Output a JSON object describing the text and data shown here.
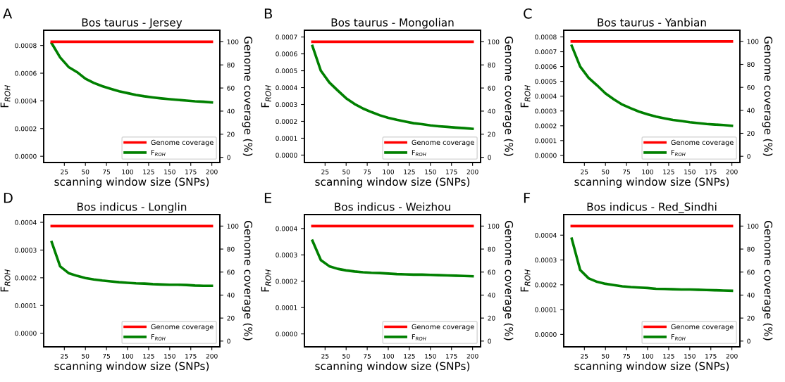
{
  "chart_data": [
    {
      "type": "line",
      "title": "Bos taurus - Jersey",
      "annotations": [
        "A"
      ],
      "xlabel": "scanning window size (SNPs)",
      "ylabel": "F$_{ROH}$",
      "y2label": "Genome coverage (%)",
      "legend": "bottom right",
      "x": [
        10,
        20,
        30,
        40,
        50,
        60,
        70,
        80,
        90,
        100,
        110,
        120,
        130,
        140,
        150,
        160,
        170,
        180,
        190,
        200
      ],
      "series": [
        {
          "name": "Genome coverage",
          "color": "#ff0000",
          "axis": "y2",
          "values": [
            100,
            100,
            100,
            100,
            100,
            100,
            100,
            100,
            100,
            100,
            100,
            100,
            100,
            100,
            100,
            100,
            100,
            100,
            100,
            100
          ]
        },
        {
          "name": "F$_{ROH}$",
          "color": "#008000",
          "values": [
            0.000816,
            0.000714,
            0.000645,
            0.000608,
            0.00056,
            0.00053,
            0.000506,
            0.000487,
            0.000469,
            0.000456,
            0.000443,
            0.000433,
            0.000425,
            0.000418,
            0.000412,
            0.000407,
            0.000402,
            0.000397,
            0.000394,
            0.000389
          ]
        }
      ],
      "xlim": [
        0.5,
        209.5
      ],
      "xticks": [
        25,
        50,
        75,
        100,
        125,
        150,
        175,
        200
      ],
      "ylim": [
        -4.5e-05,
        0.00091
      ],
      "yticks": [
        {
          "value": 0,
          "label": "0.0000"
        },
        {
          "value": 0.0002,
          "label": "0.0002"
        },
        {
          "value": 0.0004,
          "label": "0.0004"
        },
        {
          "value": 0.0006,
          "label": "0.0006"
        },
        {
          "value": 0.0008,
          "label": "0.0008"
        }
      ],
      "y2lim": [
        -4.5,
        110
      ],
      "y2ticks": [
        0,
        20,
        40,
        60,
        80,
        100
      ]
    },
    {
      "type": "line",
      "title": "Bos taurus - Mongolian",
      "annotations": [
        "B"
      ],
      "xlabel": "scanning window size (SNPs)",
      "ylabel": "F$_{ROH}$",
      "y2label": "Genome coverage (%)",
      "legend": "bottom right",
      "x": [
        10,
        20,
        30,
        40,
        50,
        60,
        70,
        80,
        90,
        100,
        110,
        120,
        130,
        140,
        150,
        160,
        170,
        180,
        190,
        200
      ],
      "series": [
        {
          "name": "Genome coverage",
          "color": "#ff0000",
          "axis": "y2",
          "values": [
            100,
            100,
            100,
            100,
            100,
            100,
            100,
            100,
            100,
            100,
            100,
            100,
            100,
            100,
            100,
            100,
            100,
            100,
            100,
            100
          ]
        },
        {
          "name": "F$_{ROH}$",
          "color": "#008000",
          "values": [
            0.000647,
            0.0005,
            0.000431,
            0.000383,
            0.000337,
            0.000303,
            0.000276,
            0.000255,
            0.000236,
            0.000221,
            0.000209,
            0.000199,
            0.000189,
            0.000183,
            0.000176,
            0.000171,
            0.000167,
            0.000163,
            0.00016,
            0.000156
          ]
        }
      ],
      "xlim": [
        0.5,
        209.5
      ],
      "xticks": [
        25,
        50,
        75,
        100,
        125,
        150,
        175,
        200
      ],
      "ylim": [
        -4.4e-05,
        0.00074
      ],
      "yticks": [
        {
          "value": 0,
          "label": "0.0000"
        },
        {
          "value": 0.0001,
          "label": "0.0001"
        },
        {
          "value": 0.0002,
          "label": "0.0002"
        },
        {
          "value": 0.0003,
          "label": "0.0003"
        },
        {
          "value": 0.0004,
          "label": "0.0004"
        },
        {
          "value": 0.0005,
          "label": "0.0005"
        },
        {
          "value": 0.0006,
          "label": "0.0006"
        },
        {
          "value": 0.0007,
          "label": "0.0007"
        }
      ],
      "y2lim": [
        -4.5,
        110
      ],
      "y2ticks": [
        0,
        20,
        40,
        60,
        80,
        100
      ]
    },
    {
      "type": "line",
      "title": "Bos taurus - Yanbian",
      "annotations": [
        "C"
      ],
      "xlabel": "scanning window size (SNPs)",
      "ylabel": "F$_{ROH}$",
      "y2label": "Genome coverage (%)",
      "legend": "bottom right",
      "x": [
        10,
        20,
        30,
        40,
        50,
        60,
        70,
        80,
        90,
        100,
        110,
        120,
        130,
        140,
        150,
        160,
        170,
        180,
        190,
        200
      ],
      "series": [
        {
          "name": "Genome coverage",
          "color": "#ff0000",
          "axis": "y2",
          "values": [
            100,
            100,
            100,
            100,
            100,
            100,
            100,
            100,
            100,
            100,
            100,
            100,
            100,
            100,
            100,
            100,
            100,
            100,
            100,
            100
          ]
        },
        {
          "name": "F$_{ROH}$",
          "color": "#008000",
          "values": [
            0.00074,
            0.0006,
            0.000524,
            0.000473,
            0.000419,
            0.000378,
            0.000343,
            0.000318,
            0.000295,
            0.000277,
            0.000262,
            0.00025,
            0.000239,
            0.000232,
            0.000224,
            0.000218,
            0.000212,
            0.000208,
            0.000205,
            0.0002
          ]
        }
      ],
      "xlim": [
        0.5,
        209.5
      ],
      "xticks": [
        25,
        50,
        75,
        100,
        125,
        150,
        175,
        200
      ],
      "ylim": [
        -4.8e-05,
        0.000845
      ],
      "yticks": [
        {
          "value": 0,
          "label": "0.0000"
        },
        {
          "value": 0.0001,
          "label": "0.0001"
        },
        {
          "value": 0.0002,
          "label": "0.0002"
        },
        {
          "value": 0.0003,
          "label": "0.0003"
        },
        {
          "value": 0.0004,
          "label": "0.0004"
        },
        {
          "value": 0.0005,
          "label": "0.0005"
        },
        {
          "value": 0.0006,
          "label": "0.0006"
        },
        {
          "value": 0.0007,
          "label": "0.0007"
        },
        {
          "value": 0.0008,
          "label": "0.0008"
        }
      ],
      "y2lim": [
        -5.4,
        109.7
      ],
      "y2ticks": [
        0,
        20,
        40,
        60,
        80,
        100
      ]
    },
    {
      "type": "line",
      "title": "Bos indicus - Longlin",
      "annotations": [
        "D"
      ],
      "xlabel": "scanning window size (SNPs)",
      "ylabel": "F$_{ROH}$",
      "y2label": "Genome coverage (%)",
      "legend": "bottom right",
      "x": [
        10,
        20,
        30,
        40,
        50,
        60,
        70,
        80,
        90,
        100,
        110,
        120,
        130,
        140,
        150,
        160,
        170,
        180,
        190,
        200
      ],
      "series": [
        {
          "name": "Genome coverage",
          "color": "#ff0000",
          "axis": "y2",
          "values": [
            100,
            100,
            100,
            100,
            100,
            100,
            100,
            100,
            100,
            100,
            100,
            100,
            100,
            100,
            100,
            100,
            100,
            100,
            100,
            100
          ]
        },
        {
          "name": "F$_{ROH}$",
          "color": "#008000",
          "values": [
            0.000329,
            0.000241,
            0.000217,
            0.000207,
            0.000199,
            0.000194,
            0.00019,
            0.000187,
            0.000184,
            0.000182,
            0.00018,
            0.000179,
            0.000177,
            0.000176,
            0.000175,
            0.000175,
            0.000174,
            0.000172,
            0.000171,
            0.000171
          ]
        }
      ],
      "xlim": [
        0.5,
        209.5
      ],
      "xticks": [
        25,
        50,
        75,
        100,
        125,
        150,
        175,
        200
      ],
      "ylim": [
        -4.9e-05,
        0.000428
      ],
      "yticks": [
        {
          "value": 0,
          "label": "0.0000"
        },
        {
          "value": 0.0001,
          "label": "0.0001"
        },
        {
          "value": 0.0002,
          "label": "0.0002"
        },
        {
          "value": 0.0003,
          "label": "0.0003"
        },
        {
          "value": 0.0004,
          "label": "0.0004"
        }
      ],
      "y2lim": [
        -5,
        110
      ],
      "y2ticks": [
        0,
        20,
        40,
        60,
        80,
        100
      ]
    },
    {
      "type": "line",
      "title": "Bos indicus - Weizhou",
      "annotations": [
        "E"
      ],
      "xlabel": "scanning window size (SNPs)",
      "ylabel": "F$_{ROH}$",
      "y2label": "Genome coverage (%)",
      "legend": "bottom right",
      "x": [
        10,
        20,
        30,
        40,
        50,
        60,
        70,
        80,
        90,
        100,
        110,
        120,
        130,
        140,
        150,
        160,
        170,
        180,
        190,
        200
      ],
      "series": [
        {
          "name": "Genome coverage",
          "color": "#ff0000",
          "axis": "y2",
          "values": [
            100,
            100,
            100,
            100,
            100,
            100,
            100,
            100,
            100,
            100,
            100,
            100,
            100,
            100,
            100,
            100,
            100,
            100,
            100,
            100
          ]
        },
        {
          "name": "F$_{ROH}$",
          "color": "#008000",
          "values": [
            0.000354,
            0.00028,
            0.000257,
            0.000247,
            0.000241,
            0.000237,
            0.000234,
            0.000232,
            0.000231,
            0.000229,
            0.000227,
            0.000226,
            0.000225,
            0.000225,
            0.000224,
            0.000223,
            0.000222,
            0.000221,
            0.00022,
            0.000219
          ]
        }
      ],
      "xlim": [
        0.5,
        209.5
      ],
      "xticks": [
        25,
        50,
        75,
        100,
        125,
        150,
        175,
        200
      ],
      "ylim": [
        -4.9e-05,
        0.000453
      ],
      "yticks": [
        {
          "value": 0,
          "label": "0.0000"
        },
        {
          "value": 0.0001,
          "label": "0.0001"
        },
        {
          "value": 0.0002,
          "label": "0.0002"
        },
        {
          "value": 0.0003,
          "label": "0.0003"
        },
        {
          "value": 0.0004,
          "label": "0.0004"
        }
      ],
      "y2lim": [
        -5,
        110
      ],
      "y2ticks": [
        0,
        20,
        40,
        60,
        80,
        100
      ]
    },
    {
      "type": "line",
      "title": "Bos indicus - Red_Sindhi",
      "annotations": [
        "F"
      ],
      "xlabel": "scanning window size (SNPs)",
      "ylabel": "F$_{ROH}$",
      "y2label": "Genome coverage (%)",
      "legend": "bottom right",
      "x": [
        10,
        20,
        30,
        40,
        50,
        60,
        70,
        80,
        90,
        100,
        110,
        120,
        130,
        140,
        150,
        160,
        170,
        180,
        190,
        200
      ],
      "series": [
        {
          "name": "Genome coverage",
          "color": "#ff0000",
          "axis": "y2",
          "values": [
            100,
            100,
            100,
            100,
            100,
            100,
            100,
            100,
            100,
            100,
            100,
            100,
            100,
            100,
            100,
            100,
            100,
            100,
            100,
            100
          ]
        },
        {
          "name": "F$_{ROH}$",
          "color": "#008000",
          "values": [
            0.000386,
            0.00026,
            0.000226,
            0.000212,
            0.000204,
            0.000199,
            0.000194,
            0.000191,
            0.000189,
            0.000187,
            0.000184,
            0.000183,
            0.000182,
            0.000181,
            0.000181,
            0.00018,
            0.000179,
            0.000178,
            0.000177,
            0.000176
          ]
        }
      ],
      "xlim": [
        0.5,
        209.5
      ],
      "xticks": [
        25,
        50,
        75,
        100,
        125,
        150,
        175,
        200
      ],
      "ylim": [
        -5e-05,
        0.000483
      ],
      "yticks": [
        {
          "value": 0,
          "label": "0.0000"
        },
        {
          "value": 0.0001,
          "label": "0.0001"
        },
        {
          "value": 0.0002,
          "label": "0.0002"
        },
        {
          "value": 0.0003,
          "label": "0.0003"
        },
        {
          "value": 0.0004,
          "label": "0.0004"
        }
      ],
      "y2lim": [
        -5,
        110
      ],
      "y2ticks": [
        0,
        20,
        40,
        60,
        80,
        100
      ]
    }
  ]
}
